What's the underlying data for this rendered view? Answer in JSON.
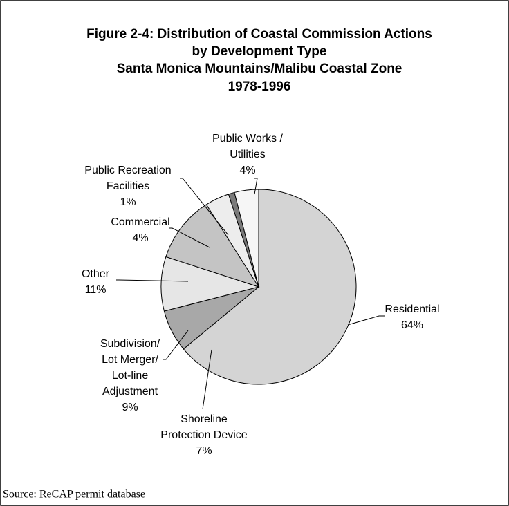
{
  "chart_data": {
    "type": "pie",
    "title": [
      "Figure 2-4:  Distribution of Coastal Commission Actions",
      "by Development Type"
    ],
    "subtitle": [
      "Santa Monica Mountains/Malibu Coastal Zone",
      "1978-1996"
    ],
    "categories": [
      [
        "Residential"
      ],
      [
        "Shoreline",
        "Protection Device"
      ],
      [
        "Subdivision/",
        "Lot Merger/",
        "Lot-line",
        "Adjustment"
      ],
      [
        "Other"
      ],
      [
        "Commercial"
      ],
      [
        "Public Recreation",
        "Facilities"
      ],
      [
        "Public Works /",
        "Utilities"
      ]
    ],
    "values": [
      64,
      7,
      9,
      11,
      4,
      1,
      4
    ],
    "value_labels": [
      "64%",
      "7%",
      "9%",
      "11%",
      "4%",
      "1%",
      "4%"
    ],
    "colors": [
      "#d4d4d4",
      "#a8a8a8",
      "#e6e6e6",
      "#c4c4c4",
      "#ededed",
      "#7a7a7a",
      "#f6f6f6"
    ],
    "source": "Source:  ReCAP permit database"
  }
}
